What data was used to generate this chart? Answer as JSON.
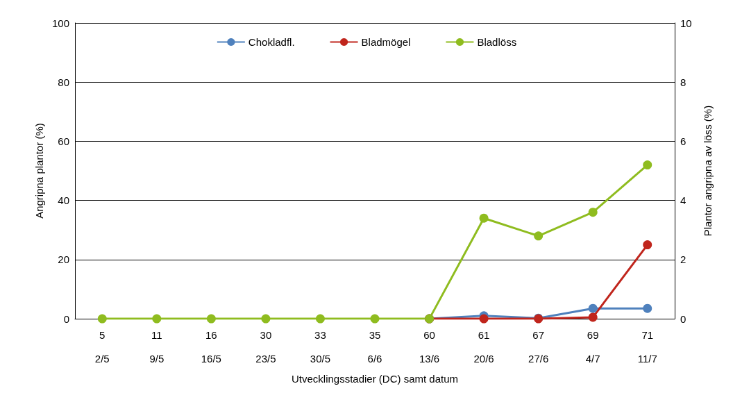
{
  "chart_data": {
    "type": "line",
    "xlabel": "Utvecklingsstadier (DC) samt datum",
    "ylabel": "Angripna plantor (%)",
    "y2label": "Plantor angripna av löss (%)",
    "categories": [
      "5\n2/5",
      "11\n9/5",
      "16\n16/5",
      "30\n23/5",
      "33\n30/5",
      "35\n6/6",
      "60\n13/6",
      "61\n20/6",
      "67\n27/6",
      "69\n4/7",
      "71\n11/7"
    ],
    "series": [
      {
        "name": "Chokladfl.",
        "color": "#4f81bd",
        "values": [
          null,
          null,
          null,
          null,
          null,
          null,
          0,
          1,
          0.2,
          3.5,
          3.5
        ]
      },
      {
        "name": "Bladmögel",
        "color": "#c0251c",
        "values": [
          null,
          null,
          null,
          null,
          null,
          null,
          0,
          0,
          0,
          0.5,
          25
        ]
      },
      {
        "name": "Bladlöss",
        "color": "#8fbc1f",
        "axis": "y2",
        "values": [
          0,
          0,
          0,
          0,
          0,
          0,
          0,
          3.4,
          2.8,
          3.6,
          5.2
        ]
      }
    ],
    "ylim": [
      0,
      100
    ],
    "yticks": [
      0,
      20,
      40,
      60,
      80,
      100
    ],
    "y2lim": [
      0,
      10
    ],
    "y2ticks": [
      0,
      2,
      4,
      6,
      8,
      10
    ],
    "grid": "y",
    "legend": "top",
    "marker": "circle",
    "line_style": "solid"
  }
}
